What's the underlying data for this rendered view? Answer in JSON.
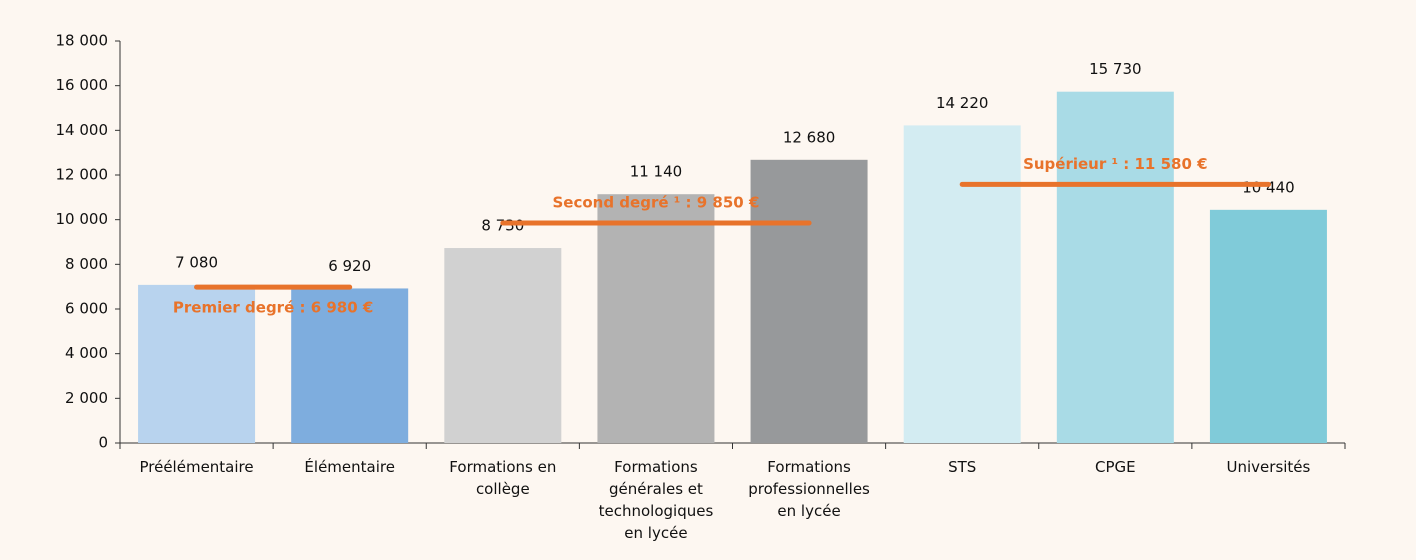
{
  "chart_data": {
    "type": "bar",
    "categories": [
      "Préélémentaire",
      "Élémentaire",
      "Formations en collège",
      "Formations générales et technologiques en lycée",
      "Formations professionnelles en lycée",
      "STS",
      "CPGE",
      "Universités"
    ],
    "values": [
      7080,
      6920,
      8730,
      11140,
      12680,
      14220,
      15730,
      10440
    ],
    "value_labels": [
      "7 080",
      "6 920",
      "8 730",
      "11 140",
      "12 680",
      "14 220",
      "15 730",
      "10 440"
    ],
    "colors": [
      "#b8d3ee",
      "#7eadde",
      "#d1d1d1",
      "#b3b3b3",
      "#97999b",
      "#d3ecf2",
      "#a9dbe6",
      "#80cbd9"
    ],
    "ylim": [
      0,
      18000
    ],
    "yticks": [
      0,
      {
        "value": 2000,
        "label": "2 000"
      },
      {
        "value": 4000,
        "label": "4 000"
      },
      {
        "value": 6000,
        "label": "6 000"
      },
      {
        "value": 8000,
        "label": "8 000"
      },
      {
        "value": 10000,
        "label": "10 000"
      },
      {
        "value": 12000,
        "label": "12 000"
      },
      {
        "value": 14000,
        "label": "14 000"
      },
      {
        "value": 16000,
        "label": "16 000"
      },
      {
        "value": 18000,
        "label": "18 000"
      }
    ],
    "annotations": [
      {
        "label": "Premier degré : 6 980 €",
        "value": 6980,
        "span": [
          "Préélémentaire",
          "Élémentaire"
        ],
        "label_position": "below"
      },
      {
        "label": "Second degré ¹ : 9 850 €",
        "value": 9850,
        "span": [
          "Formations en collège",
          "Formations professionnelles en lycée"
        ],
        "label_position": "above"
      },
      {
        "label": "Supérieur ¹ : 11 580 €",
        "value": 11580,
        "span": [
          "STS",
          "Universités"
        ],
        "label_position": "above"
      }
    ],
    "annotation_color": "#e8732b"
  }
}
